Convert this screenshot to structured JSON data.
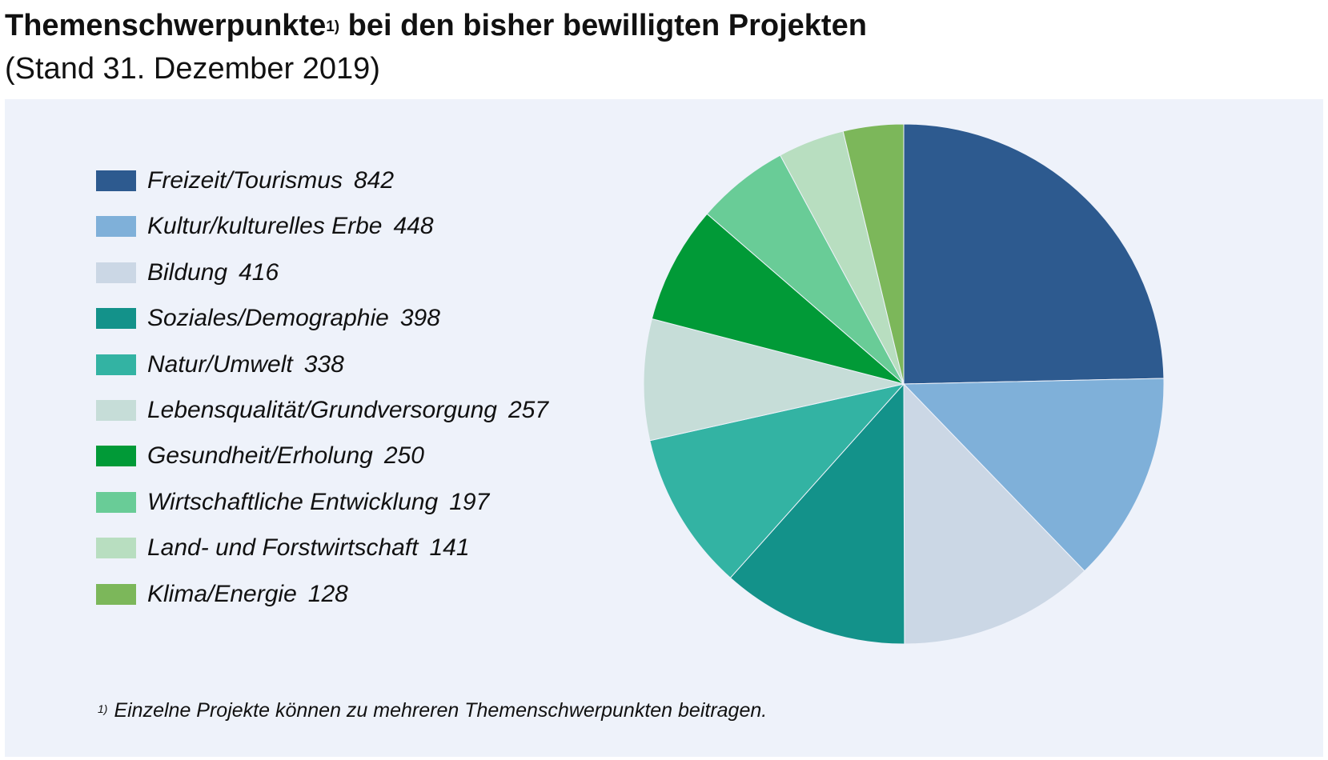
{
  "header": {
    "title": "Themenschwerpunkte",
    "title_sup": "1)",
    "title_rest": " bei den bisher bewilligten Projekten",
    "subtitle": "(Stand 31. Dezember 2019)"
  },
  "footnote": {
    "marker": "1)",
    "text": "Einzelne Projekte können zu mehreren Themenschwerpunkten beitragen."
  },
  "colors": {
    "panel_background": "#eef2fa",
    "text": "#111111"
  },
  "chart_data": {
    "type": "pie",
    "title": "Themenschwerpunkte bei den bisher bewilligten Projekten",
    "subtitle": "(Stand 31. Dezember 2019)",
    "start_angle": "12 o'clock",
    "direction": "clockwise",
    "legend_position": "left",
    "slices": [
      {
        "label": "Freizeit/Tourismus",
        "value": 842,
        "value_label": "842",
        "color": "#2d5a8f"
      },
      {
        "label": "Kultur/kulturelles Erbe",
        "value": 448,
        "value_label": "448",
        "color": "#7fb0d9"
      },
      {
        "label": "Bildung",
        "value": 416,
        "value_label": "416",
        "color": "#cbd7e5"
      },
      {
        "label": "Soziales/Demographie",
        "value": 398,
        "value_label": "398",
        "color": "#13928a"
      },
      {
        "label": "Natur/Umwelt",
        "value": 338,
        "value_label": "338",
        "color": "#33b3a3"
      },
      {
        "label": "Lebensqualität/Grundversorgung",
        "value": 257,
        "value_label": "257",
        "color": "#c6ddd8"
      },
      {
        "label": "Gesundheit/Erholung",
        "value": 250,
        "value_label": "250",
        "color": "#019a37"
      },
      {
        "label": "Wirtschaftliche Entwicklung",
        "value": 197,
        "value_label": "197",
        "color": "#69cc97"
      },
      {
        "label": "Land- und Forstwirtschaft",
        "value": 141,
        "value_label": "141",
        "color": "#b8dec0"
      },
      {
        "label": "Klima/Energie",
        "value": 128,
        "value_label": "128",
        "color": "#7cb75a"
      }
    ]
  }
}
